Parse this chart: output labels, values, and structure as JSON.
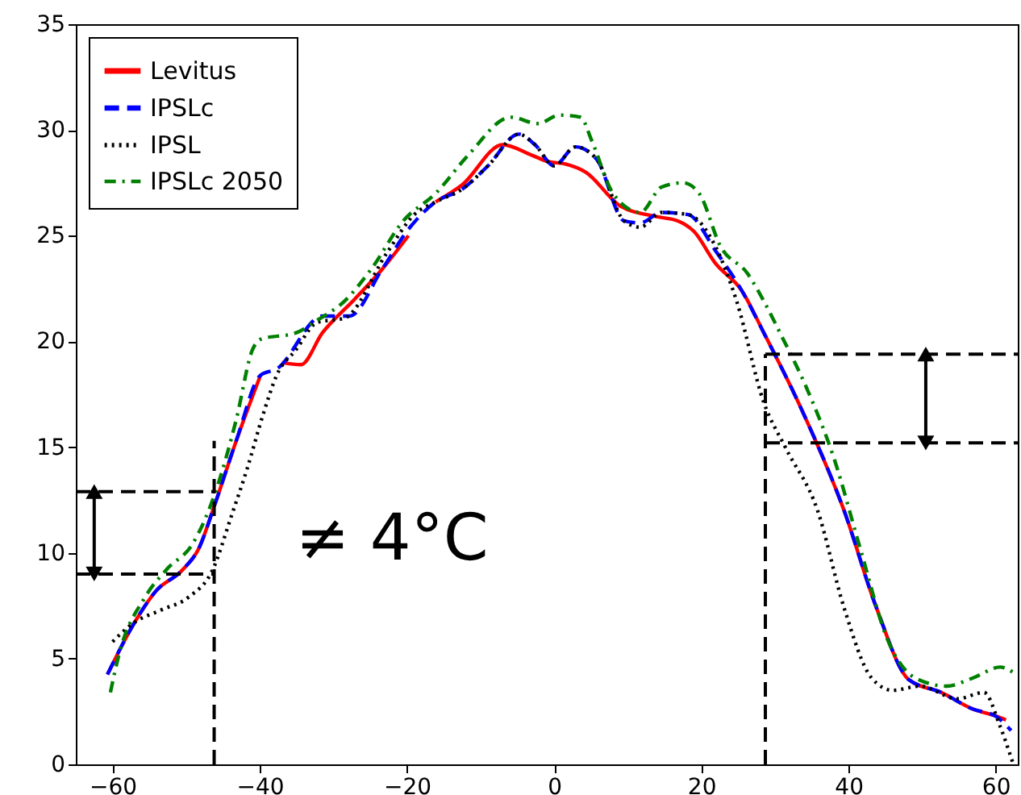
{
  "chart_data": {
    "type": "line",
    "xlim": [
      -65,
      63
    ],
    "ylim": [
      0,
      35
    ],
    "xticks": [
      -60,
      -40,
      -20,
      0,
      20,
      40,
      60
    ],
    "yticks": [
      0,
      5,
      10,
      15,
      20,
      25,
      30,
      35
    ],
    "grid": false,
    "legend": "top left",
    "annotations": [
      "≠ 4°C"
    ],
    "series": [
      {
        "name": "Levitus",
        "color": "#ff0000",
        "line_style": "solid",
        "x": [
          -60.7,
          -57.1,
          -54.1,
          -50.5,
          -48.3,
          -46.1,
          -43.2,
          -39.9,
          -38.5,
          -37,
          -34.4,
          -31.5,
          -27.1,
          -23.4,
          -19.8,
          -18,
          -16.1,
          -12.5,
          -7,
          -3,
          -0.8,
          1.4,
          4.3,
          9,
          13.9,
          16.8,
          19,
          21.9,
          25.5,
          28.5,
          33.6,
          39.4,
          43.8,
          48.2,
          52.6,
          57,
          59.9,
          61.4
        ],
        "values": [
          4.25,
          6.66,
          8.2,
          9.2,
          10.2,
          12.3,
          15.3,
          18.4,
          null,
          19.0,
          18.9,
          20.4,
          22.0,
          23.4,
          25.0,
          null,
          26.6,
          27.4,
          29.3,
          28.8,
          28.5,
          28.4,
          28.0,
          26.4,
          25.9,
          25.7,
          25.2,
          23.7,
          22.4,
          20.4,
          16.8,
          12.0,
          7.4,
          4.0,
          3.4,
          2.6,
          2.3,
          2.1
        ]
      },
      {
        "name": "IPSLc",
        "color": "#0000ff",
        "line_style": "dashed",
        "x": [
          -60.7,
          -57.1,
          -54.1,
          -50.5,
          -48.3,
          -46.1,
          -43.2,
          -39.9,
          -37.7,
          -31.5,
          -27.8,
          -23.4,
          -19.8,
          -16.1,
          -12.5,
          -9,
          -4.8,
          -2.6,
          0,
          2.9,
          5.8,
          9.5,
          11.7,
          14.6,
          18.2,
          21.9,
          25.5,
          28.5,
          33.6,
          39.4,
          43.8,
          48.2,
          52.6,
          57,
          59.9,
          62.1
        ],
        "values": [
          4.25,
          6.66,
          8.2,
          9.2,
          10.2,
          12.3,
          15.3,
          18.4,
          18.7,
          21.2,
          21.2,
          23.4,
          25.3,
          26.6,
          27.2,
          28.3,
          29.8,
          29.3,
          28.3,
          29.2,
          28.6,
          25.7,
          25.6,
          26.1,
          26.0,
          24.3,
          22.4,
          20.4,
          16.8,
          12.0,
          7.4,
          4.0,
          3.4,
          2.6,
          2.3,
          1.6
        ]
      },
      {
        "name": "IPSL",
        "color": "#000000",
        "line_style": "dotted",
        "x": [
          -60,
          -57.1,
          -53.4,
          -49.7,
          -46.4,
          -43.9,
          -41.7,
          -39.5,
          -37.7,
          -35.1,
          -32.2,
          -28.5,
          -22.7,
          -19,
          -16.1,
          -12.5,
          -9,
          -4.8,
          -2.6,
          0,
          2.9,
          5.8,
          9.5,
          11.7,
          14.6,
          18.2,
          21.9,
          24.8,
          28.5,
          31.4,
          35.8,
          39.4,
          43.1,
          46,
          49.7,
          54.8,
          58.4,
          60.6,
          62.3
        ],
        "values": [
          5.8,
          6.7,
          7.3,
          7.9,
          9.2,
          11.7,
          14.0,
          16.6,
          18.4,
          19.6,
          20.9,
          21.1,
          24.2,
          26.0,
          26.6,
          27.2,
          28.3,
          29.8,
          29.3,
          28.3,
          29.2,
          28.6,
          25.7,
          25.4,
          26.1,
          26.0,
          24.5,
          21.9,
          17.1,
          15.0,
          12.0,
          7.4,
          4.1,
          3.5,
          3.7,
          3.1,
          3.4,
          1.8,
          0.1
        ]
      },
      {
        "name": "IPSLc 2050",
        "color": "#008000",
        "line_style": "dashdot",
        "x": [
          -60.3,
          -59.2,
          -55.6,
          -52.7,
          -49,
          -46.1,
          -43.2,
          -41,
          -39.9,
          -35.1,
          -32.2,
          -28.5,
          -24.9,
          -20.5,
          -16.1,
          -11.7,
          -5.9,
          -2.2,
          0.7,
          3.6,
          5.1,
          8,
          11.7,
          14.6,
          17.5,
          19.7,
          22.6,
          26.3,
          28.5,
          30.7,
          34.3,
          38,
          41.6,
          45.3,
          49,
          53.3,
          57,
          60.6,
          62.8
        ],
        "values": [
          3.4,
          5.1,
          7.9,
          9.2,
          10.5,
          12.8,
          16.3,
          19.6,
          20.1,
          20.4,
          21.0,
          21.9,
          23.4,
          25.7,
          27.0,
          28.8,
          30.6,
          30.3,
          30.7,
          30.6,
          29.5,
          27.0,
          26.1,
          27.3,
          27.5,
          27.0,
          24.5,
          23.2,
          21.9,
          20.4,
          17.8,
          14.5,
          10.2,
          5.9,
          4.1,
          3.7,
          4.1,
          4.6,
          4.25
        ]
      },
      {
        "color": "#000000",
        "line_style": "dashed",
        "x": [
          -65,
          -46.2
        ],
        "values": [
          12.9,
          12.9
        ]
      },
      {
        "color": "#000000",
        "line_style": "dashed",
        "x": [
          -65,
          -46.2
        ],
        "values": [
          9.0,
          9.0
        ]
      },
      {
        "color": "#000000",
        "line_style": "dashed",
        "x": [
          -46.2,
          -46.2
        ],
        "values": [
          0,
          15.3
        ]
      },
      {
        "color": "#000000",
        "line_style": "dashed",
        "x": [
          28.7,
          28.7
        ],
        "values": [
          0,
          19.4
        ]
      },
      {
        "color": "#000000",
        "line_style": "dashed",
        "x": [
          28.7,
          63
        ],
        "values": [
          19.4,
          19.4
        ]
      },
      {
        "color": "#000000",
        "line_style": "dashed",
        "x": [
          28.7,
          63
        ],
        "values": [
          15.2,
          15.2
        ]
      },
      {
        "color": "#000000",
        "line_style": "solid",
        "marker": "triangle",
        "x": [
          -62.5,
          -62.5
        ],
        "values": [
          12.9,
          9.0
        ]
      },
      {
        "color": "#000000",
        "line_style": "solid",
        "marker": "triangle",
        "x": [
          50.5,
          50.5
        ],
        "values": [
          19.4,
          15.2
        ]
      }
    ]
  }
}
